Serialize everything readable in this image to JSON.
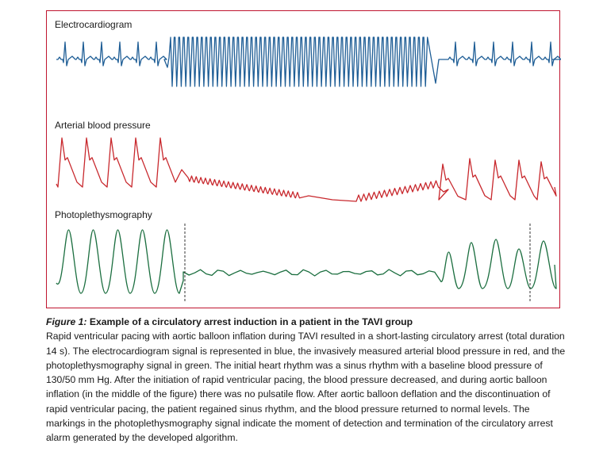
{
  "figure": {
    "panels": [
      {
        "id": "ecg",
        "label": "Electrocardiogram",
        "color": "#1f5e96"
      },
      {
        "id": "abp",
        "label": "Arterial blood pressure",
        "color": "#c8282d"
      },
      {
        "id": "ppg",
        "label": "Photoplethysmography",
        "color": "#1b6e3f"
      }
    ],
    "frame_color": "#c0152f",
    "marker_style": "dashed vertical line"
  },
  "caption": {
    "figure_number": "Figure 1:",
    "title": " Example of a circulatory arrest induction in a patient in the TAVI group",
    "body": "Rapid ventricular pacing with aortic balloon inflation during TAVI resulted in a short-lasting circulatory arrest (total duration 14 s). The electrocardiogram signal is represented in blue, the invasively measured arterial blood pressure in red, and the photoplethysmography signal in green. The initial heart rhythm was a sinus rhythm with a baseline blood pressure of 130/50 mm Hg. After the initiation of rapid ventricular pacing, the blood pressure decreased, and during aortic balloon inflation (in the middle of the figure) there was no pulsatile flow. After aortic balloon deflation and the discontinuation of rapid ventricular pacing, the patient regained sinus rhythm, and the blood pressure returned to normal levels. The markings in the photoplethysmography signal indicate the moment of detection and termination of the circulatory arrest alarm generated by the developed algorithm."
  }
}
